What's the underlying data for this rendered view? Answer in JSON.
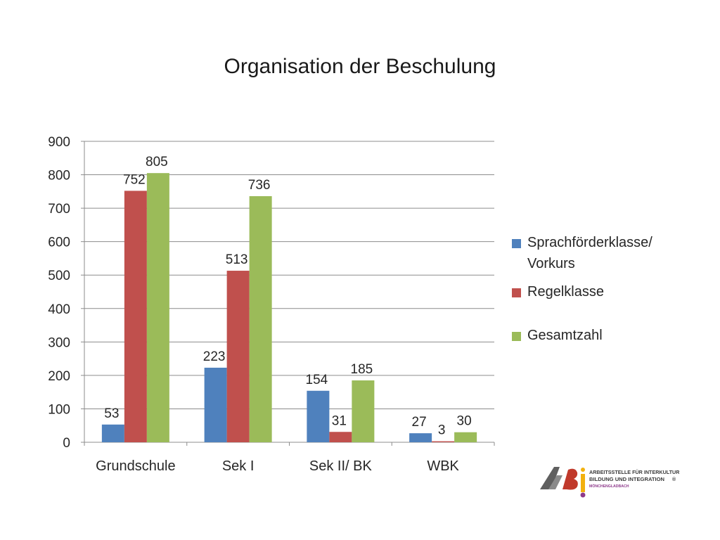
{
  "chart_data": {
    "type": "bar",
    "title": "Organisation der Beschulung",
    "categories": [
      "Grundschule",
      "Sek I",
      "Sek II/ BK",
      "WBK"
    ],
    "series": [
      {
        "name": "Sprachförderklasse/ Vorkurs",
        "values": [
          53,
          223,
          154,
          27
        ],
        "color": "#4f81bd"
      },
      {
        "name": "Regelklasse",
        "values": [
          752,
          513,
          31,
          3
        ],
        "color": "#c0504d"
      },
      {
        "name": "Gesamtzahl",
        "values": [
          805,
          736,
          185,
          30
        ],
        "color": "#9bbb59"
      }
    ],
    "ylim": [
      0,
      900
    ],
    "yticks": [
      0,
      100,
      200,
      300,
      400,
      500,
      600,
      700,
      800,
      900
    ],
    "grid": true,
    "legend_position": "right"
  },
  "legend": {
    "items": [
      {
        "line1": "Sprachförderklasse/",
        "line2": "Vorkurs"
      },
      {
        "line1": "Regelklasse",
        "line2": ""
      },
      {
        "line1": "Gesamtzahl",
        "line2": ""
      }
    ]
  },
  "logo": {
    "mark": "AßI",
    "line1": "ARBEITSSTELLE FÜR INTERKULTURELLE",
    "line2": "BILDUNG UND INTEGRATION",
    "line3": "MÖNCHENGLADBACH",
    "registered": "®",
    "colors": {
      "gray": "#5f5f5f",
      "red": "#c0392b",
      "yellow": "#f2b10f",
      "purple": "#8e3a8b"
    }
  }
}
